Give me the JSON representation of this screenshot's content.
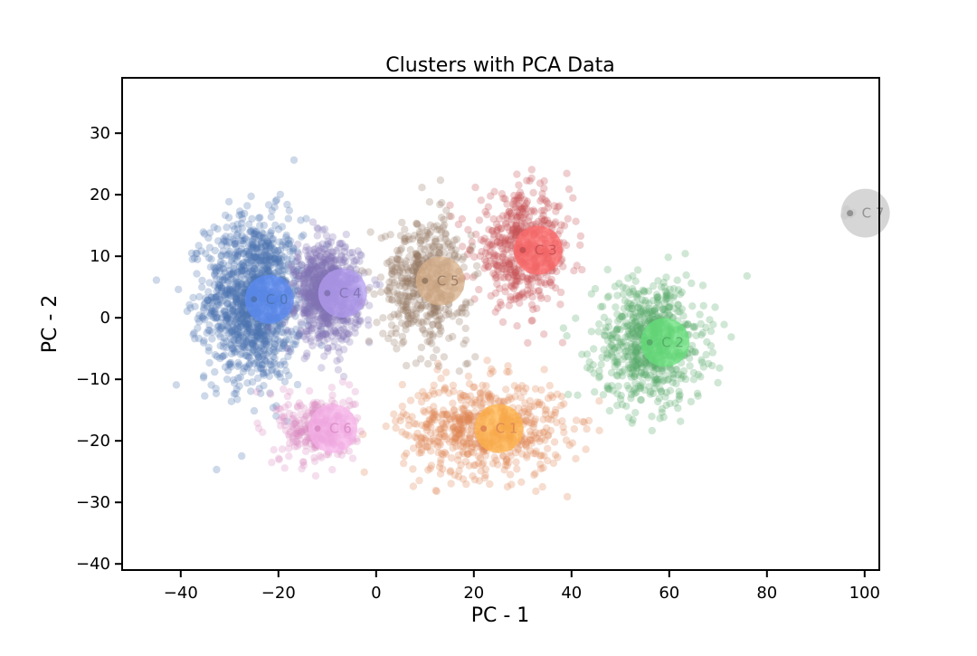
{
  "chart_data": {
    "type": "scatter",
    "title": "Clusters with PCA Data",
    "xlabel": "PC - 1",
    "ylabel": "PC - 2",
    "xlim": [
      -52,
      103
    ],
    "ylim": [
      -41,
      39
    ],
    "xticks": [
      -40,
      -20,
      0,
      20,
      40,
      60,
      80,
      100
    ],
    "yticks": [
      -40,
      -30,
      -20,
      -10,
      0,
      10,
      20,
      30
    ],
    "xtick_labels": [
      "−40",
      "−20",
      "0",
      "20",
      "40",
      "60",
      "80",
      "100"
    ],
    "ytick_labels": [
      "−40",
      "−30",
      "−20",
      "−10",
      "0",
      "10",
      "20",
      "30"
    ],
    "grid": false,
    "point_counts_note": "",
    "clusters": [
      {
        "label": "C 0",
        "center": [
          -25,
          3
        ],
        "spread": [
          9,
          12
        ],
        "points": 1300,
        "point_color": "#4c72b0",
        "centroid_color": "#5c8cf5"
      },
      {
        "label": "C 1",
        "center": [
          22,
          -18
        ],
        "spread": [
          15,
          7
        ],
        "points": 650,
        "point_color": "#dd8452",
        "centroid_color": "#ffb347"
      },
      {
        "label": "C 2",
        "center": [
          56,
          -4
        ],
        "spread": [
          10,
          9
        ],
        "points": 700,
        "point_color": "#55a868",
        "centroid_color": "#66e07a"
      },
      {
        "label": "C 3",
        "center": [
          30,
          11
        ],
        "spread": [
          9,
          8
        ],
        "points": 550,
        "point_color": "#c44e52",
        "centroid_color": "#ff6b6b"
      },
      {
        "label": "C 4",
        "center": [
          -10,
          4
        ],
        "spread": [
          6,
          7
        ],
        "points": 900,
        "point_color": "#8172b3",
        "centroid_color": "#b39cf0"
      },
      {
        "label": "C 5",
        "center": [
          10,
          6
        ],
        "spread": [
          8,
          9
        ],
        "points": 500,
        "point_color": "#937860",
        "centroid_color": "#d8b08a"
      },
      {
        "label": "C 6",
        "center": [
          -12,
          -18
        ],
        "spread": [
          7,
          5
        ],
        "points": 300,
        "point_color": "#da8bc3",
        "centroid_color": "#f5b0e8"
      },
      {
        "label": "C 7",
        "center": [
          97,
          17
        ],
        "spread": [
          2,
          2
        ],
        "points": 4,
        "point_color": "#8c8c8c",
        "centroid_color": "#c8c8c8"
      }
    ]
  }
}
